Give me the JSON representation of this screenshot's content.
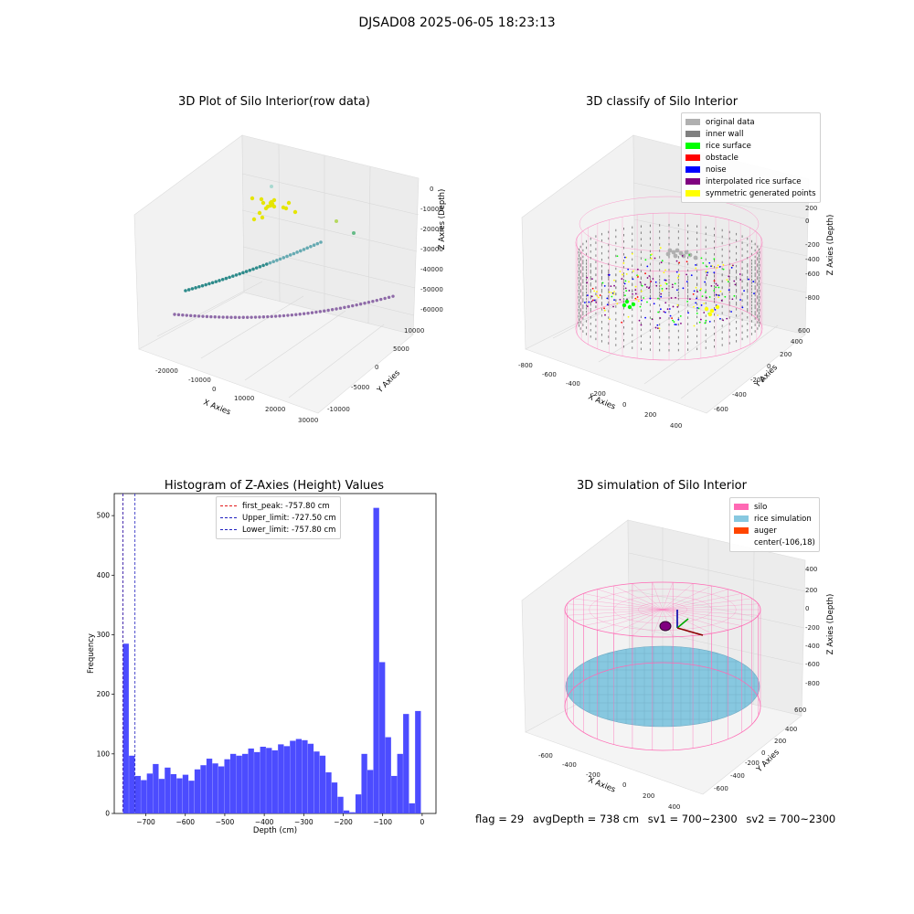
{
  "suptitle": "DJSAD08 2025-06-05 18:23:13",
  "footer": {
    "flag": "flag = 29",
    "avg_depth": "avgDepth = 738 cm",
    "sv1": "sv1 = 700~2300",
    "sv2": "sv2 = 700~2300"
  },
  "colors": {
    "hist_bar": "#4c4cff",
    "first_peak": "#e31a1c",
    "limit_line": "#1f1fbf",
    "silo": "#ff69b4",
    "rice": "#87c8e0",
    "auger": "#ff4500",
    "original": "#b0b0b0",
    "inner_wall": "#808080",
    "rice_surface": "#00ff00",
    "obstacle": "#ff0000",
    "noise": "#0000ff",
    "interp": "#800080",
    "symmetric": "#ffff00"
  },
  "chart_data": [
    {
      "type": "scatter",
      "title": "3D Plot of Silo Interior(row data)",
      "xlabel": "X Axies",
      "ylabel": "Y Axies",
      "zlabel": "Z Axies (Depth)",
      "x_ticks": [
        "-20000",
        "-10000",
        "0",
        "10000",
        "20000",
        "30000"
      ],
      "y_ticks": [
        "-10000",
        "-5000",
        "0",
        "5000",
        "10000"
      ],
      "z_ticks": [
        "0",
        "-10000",
        "-20000",
        "-30000",
        "-40000",
        "-50000",
        "-60000"
      ],
      "xlim": [
        -25000,
        30000
      ],
      "ylim": [
        -12000,
        12000
      ],
      "zlim": [
        -62000,
        2000
      ]
    },
    {
      "type": "scatter",
      "title": "3D classify of Silo Interior",
      "xlabel": "X Axies",
      "ylabel": "Y Axies",
      "zlabel": "Z Axies (Depth)",
      "x_ticks": [
        "-800",
        "-600",
        "-400",
        "-200",
        "0",
        "200",
        "400"
      ],
      "y_ticks": [
        "-600",
        "-400",
        "-200",
        "0",
        "200",
        "400",
        "600"
      ],
      "z_ticks": [
        "200",
        "0",
        "-200",
        "-400",
        "-600",
        "-800"
      ],
      "legend": [
        "original data",
        "inner wall",
        "rice surface",
        "obstacle",
        "noise",
        "interpolated rice surface",
        "symmetric generated points"
      ],
      "legend_position": "top-right"
    },
    {
      "type": "bar",
      "title": "Histogram of Z-Axies (Height) Values",
      "xlabel": "Depth (cm)",
      "ylabel": "Frequency",
      "xlim": [
        -780,
        35
      ],
      "ylim": [
        0,
        537
      ],
      "x_ticks": [
        -700,
        -600,
        -500,
        -400,
        -300,
        -200,
        -100,
        0
      ],
      "y_ticks": [
        0,
        100,
        200,
        300,
        400,
        500
      ],
      "bin_start": -757.8,
      "bin_width": 15.1,
      "values": [
        285,
        97,
        63,
        56,
        67,
        83,
        58,
        77,
        66,
        59,
        65,
        55,
        74,
        81,
        92,
        84,
        79,
        91,
        100,
        97,
        100,
        109,
        103,
        112,
        110,
        106,
        116,
        113,
        122,
        125,
        123,
        117,
        104,
        97,
        69,
        52,
        28,
        5,
        2,
        32,
        100,
        73,
        513,
        254,
        128,
        63,
        100,
        167,
        17,
        172
      ],
      "lines": [
        {
          "label": "first_peak: -757.80 cm",
          "x": -757.8,
          "style": "dashed",
          "color": "#e31a1c"
        },
        {
          "label": "Upper_limit: -727.50 cm",
          "x": -727.5,
          "style": "dashed",
          "color": "#1f1fbf"
        },
        {
          "label": "Lower_limit: -757.80 cm",
          "x": -757.8,
          "style": "dashed",
          "color": "#1f1fbf"
        }
      ],
      "legend_position": "top-center"
    },
    {
      "type": "scatter",
      "title": "3D simulation of Silo Interior",
      "xlabel": "X Axies",
      "ylabel": "Y Axies",
      "zlabel": "Z Axies (Depth)",
      "x_ticks": [
        "-600",
        "-400",
        "-200",
        "0",
        "200",
        "400"
      ],
      "y_ticks": [
        "-600",
        "-400",
        "-200",
        "0",
        "200",
        "400",
        "600"
      ],
      "z_ticks": [
        "400",
        "200",
        "0",
        "-200",
        "-400",
        "-600",
        "-800"
      ],
      "legend": [
        "silo",
        "rice simulation",
        "auger",
        "center(-106,18)"
      ],
      "legend_position": "top-right"
    }
  ]
}
